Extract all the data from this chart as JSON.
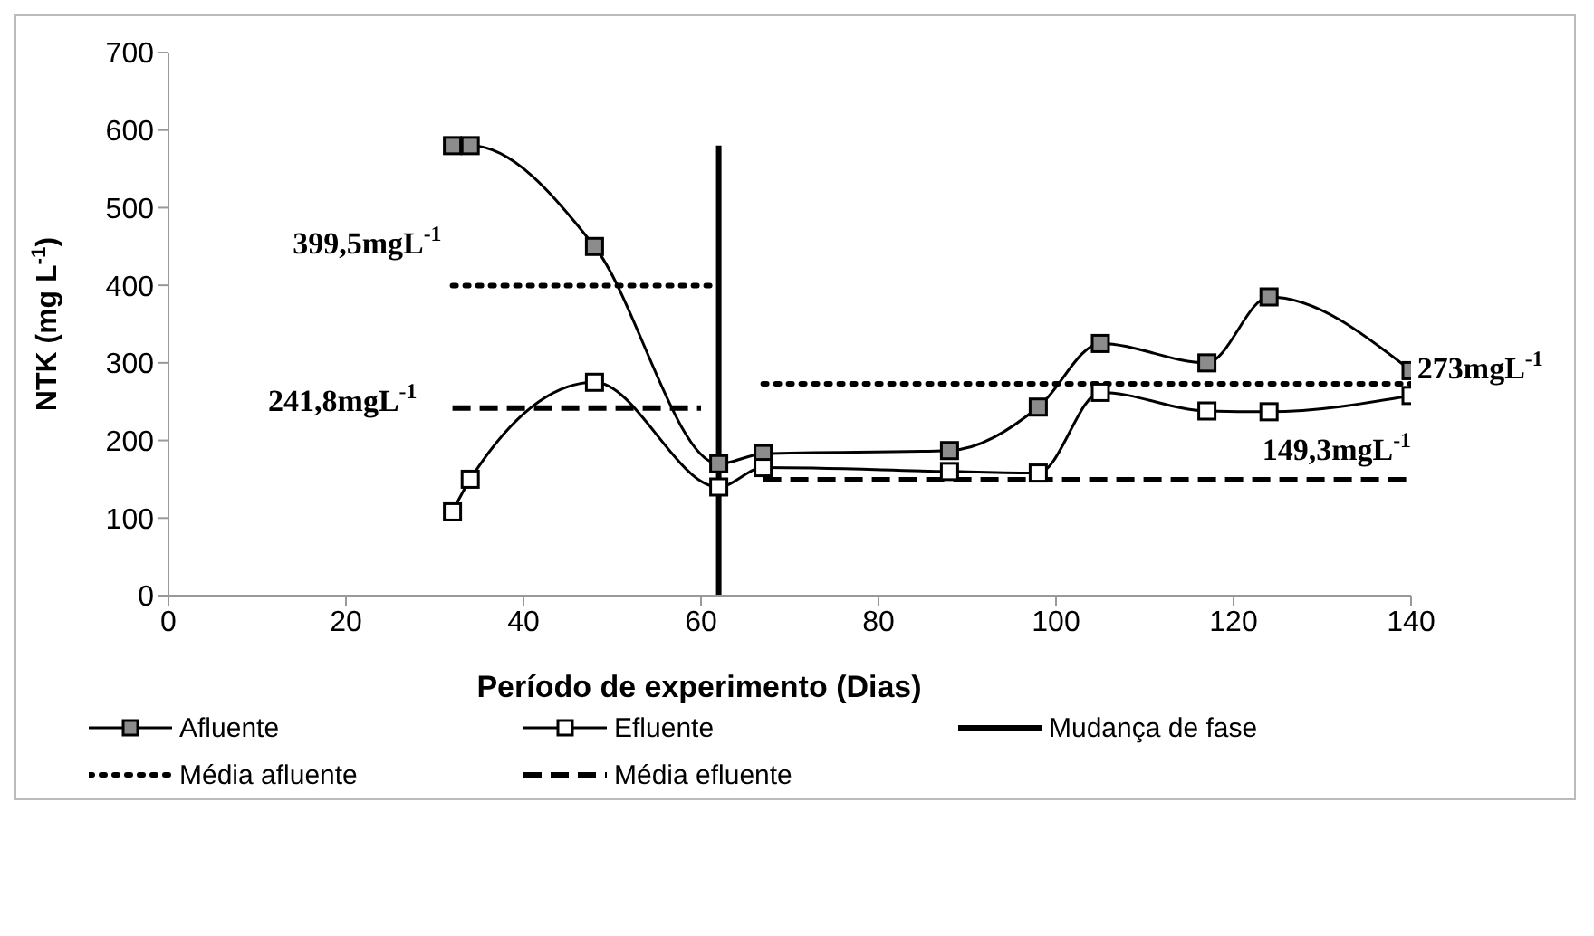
{
  "chart_data": {
    "type": "line",
    "xlabel": "Período de experimento (Dias)",
    "ylabel": "NTK (mg L$^{-1}$)",
    "xlim": [
      0,
      140
    ],
    "xticks": [
      0,
      20,
      40,
      60,
      80,
      100,
      120,
      140
    ],
    "ylim": [
      0,
      700
    ],
    "yticks": [
      0,
      100,
      200,
      300,
      400,
      500,
      600,
      700
    ],
    "legend": "bottom",
    "series": [
      {
        "name": "Afluente",
        "color": "#000000",
        "marker": "square",
        "line_style": "solid",
        "x": [
          32,
          34,
          48,
          62,
          67,
          88,
          98,
          105,
          117,
          124,
          140
        ],
        "values": [
          580,
          580,
          450,
          170,
          183,
          187,
          243,
          325,
          300,
          385,
          290
        ]
      },
      {
        "name": "Efluente",
        "color": "#000000",
        "marker": "square",
        "line_style": "solid",
        "x": [
          32,
          34,
          48,
          62,
          67,
          88,
          98,
          105,
          117,
          124,
          140
        ],
        "values": [
          108,
          150,
          275,
          140,
          165,
          160,
          158,
          262,
          238,
          237,
          258
        ]
      },
      {
        "name": "Mudança de fase",
        "color": "#000000",
        "marker": "none",
        "line_style": "solid",
        "x": [
          62,
          62
        ],
        "values": [
          0,
          580
        ]
      },
      {
        "name": "Média afluente",
        "color": "#000000",
        "marker": "none",
        "line_style": "dotted",
        "x": [
          32,
          62
        ],
        "values": [
          399.5,
          399.5
        ]
      },
      {
        "name": "Média efluente",
        "color": "#000000",
        "marker": "none",
        "line_style": "dashed",
        "x": [
          32,
          60
        ],
        "values": [
          241.8,
          241.8
        ]
      },
      {
        "color": "#000000",
        "marker": "none",
        "line_style": "dotted",
        "x": [
          67,
          140
        ],
        "values": [
          273,
          273
        ]
      },
      {
        "color": "#000000",
        "marker": "none",
        "line_style": "dashed",
        "x": [
          67,
          140
        ],
        "values": [
          149.3,
          149.3
        ]
      }
    ],
    "annotations": [
      "399,5mgL$^{-1}$",
      "241,8mgL$^{-1}$",
      "273mgL$^{-1}$",
      "149,3mgL$^{-1}$"
    ]
  }
}
